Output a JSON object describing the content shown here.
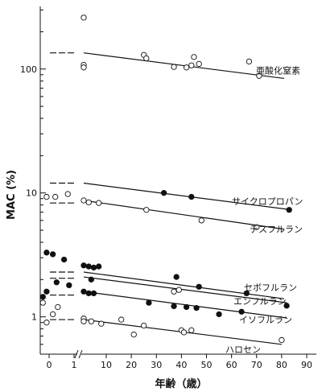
{
  "chart_data": {
    "type": "scatter",
    "title": "",
    "xlabel": "年齢（歳）",
    "ylabel": "MAC (%)",
    "y_scale": "log",
    "ylim": [
      0.5,
      320
    ],
    "y_ticks": [
      1,
      10,
      100
    ],
    "y_tick_labels": [
      "1",
      "10",
      "100"
    ],
    "x_axis_break": true,
    "x_infant_ticks": [
      0,
      1
    ],
    "x_infant_tick_labels": [
      "0",
      "1"
    ],
    "x_adult_ticks": [
      10,
      20,
      30,
      40,
      50,
      60,
      70,
      80,
      90
    ],
    "x_adult_tick_labels": [
      "10",
      "20",
      "30",
      "40",
      "50",
      "60",
      "70",
      "80",
      "90"
    ],
    "series": [
      {
        "name": "亜酸化窒素",
        "marker": "open",
        "infant_ref": 135,
        "fit": [
          [
            1,
            135
          ],
          [
            81,
            84
          ]
        ],
        "points": [
          [
            1,
            260
          ],
          [
            1,
            108
          ],
          [
            1,
            103
          ],
          [
            25,
            130
          ],
          [
            26,
            122
          ],
          [
            37,
            104
          ],
          [
            42,
            103
          ],
          [
            44,
            107
          ],
          [
            45,
            125
          ],
          [
            47,
            110
          ],
          [
            67,
            115
          ],
          [
            71,
            88
          ]
        ]
      },
      {
        "name": "サイクロプロパン",
        "marker": "filled",
        "infant_ref": 12,
        "fit": [
          [
            1,
            12
          ],
          [
            82,
            7.4
          ]
        ],
        "points": [
          [
            33,
            10
          ],
          [
            44,
            9.3
          ],
          [
            83,
            7.3
          ]
        ]
      },
      {
        "name": "デスフルラン",
        "marker": "open",
        "infant_ref": 8.3,
        "fit": [
          [
            1,
            8.7
          ],
          [
            81,
            5.1
          ]
        ],
        "points": [
          [
            -0.1,
            9.3
          ],
          [
            0.25,
            9.3
          ],
          [
            0.75,
            9.8
          ],
          [
            1,
            8.7
          ],
          [
            3,
            8.4
          ],
          [
            7,
            8.3
          ],
          [
            26,
            7.3
          ],
          [
            48,
            6.0
          ],
          [
            70,
            5.3
          ]
        ],
        "points_open": true
      },
      {
        "name": "セボフルラン",
        "marker": "filled",
        "infant_ref": 2.3,
        "fit": [
          [
            1,
            2.3
          ],
          [
            81,
            1.4
          ]
        ],
        "points": [
          [
            -0.1,
            3.3
          ],
          [
            0.15,
            3.2
          ],
          [
            0.6,
            2.9
          ],
          [
            1,
            2.6
          ],
          [
            3,
            2.55
          ],
          [
            5,
            2.5
          ],
          [
            7,
            2.55
          ],
          [
            38,
            2.1
          ],
          [
            47,
            1.75
          ],
          [
            66,
            1.55
          ],
          [
            82,
            1.23
          ]
        ]
      },
      {
        "name": "エンフルラン",
        "marker": "filled",
        "infant_ref": 2.05,
        "fit": [
          [
            1,
            2.1
          ],
          [
            82,
            1.3
          ]
        ],
        "points": [
          [
            -0.25,
            1.45
          ],
          [
            -0.1,
            1.6
          ],
          [
            0.3,
            1.9
          ],
          [
            0.8,
            1.8
          ],
          [
            1,
            1.6
          ],
          [
            3,
            1.55
          ],
          [
            4,
            2.0
          ],
          [
            5,
            1.55
          ],
          [
            27,
            1.3
          ],
          [
            37,
            1.22
          ],
          [
            42,
            1.2
          ],
          [
            46,
            1.18
          ],
          [
            55,
            1.05
          ],
          [
            64,
            1.1
          ]
        ]
      },
      {
        "name": "イソフルラン",
        "marker": "open",
        "infant_ref": 1.5,
        "fit": [
          [
            1,
            1.6
          ],
          [
            82,
            0.98
          ]
        ],
        "points": [
          [
            37,
            1.6
          ],
          [
            39,
            1.65
          ]
        ]
      },
      {
        "name": "ハロセン",
        "marker": "open",
        "infant_ref": 0.95,
        "fit": [
          [
            1,
            0.95
          ],
          [
            80,
            0.6
          ]
        ],
        "points": [
          [
            -0.25,
            1.3
          ],
          [
            -0.1,
            0.9
          ],
          [
            0.15,
            1.05
          ],
          [
            0.35,
            1.2
          ],
          [
            1,
            0.97
          ],
          [
            1,
            0.92
          ],
          [
            4,
            0.92
          ],
          [
            8,
            0.88
          ],
          [
            16,
            0.95
          ],
          [
            21,
            0.72
          ],
          [
            25,
            0.85
          ],
          [
            40,
            0.78
          ],
          [
            41,
            0.75
          ],
          [
            44,
            0.78
          ],
          [
            80,
            0.65
          ]
        ]
      }
    ]
  }
}
